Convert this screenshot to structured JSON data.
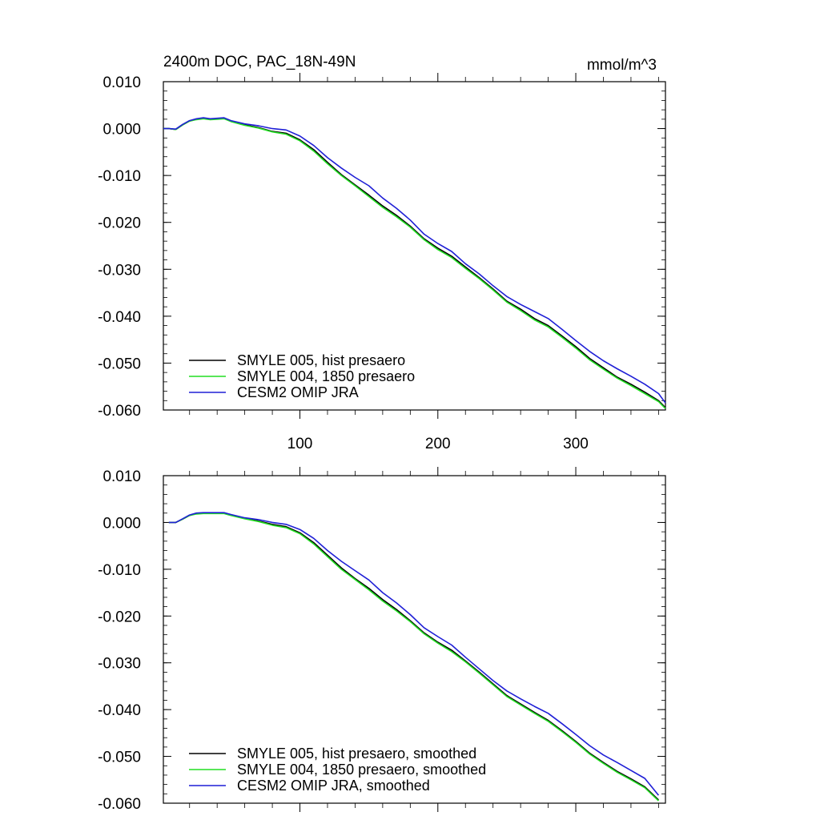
{
  "figure": {
    "title": "2400m DOC, PAC_18N-49N",
    "units": "mmol/m^3"
  },
  "colors": {
    "hist": "#000000",
    "y1850": "#22dd22",
    "omip": "#1f1fd6"
  },
  "chart_data": [
    {
      "type": "line",
      "title": "2400m DOC, PAC_18N-49N",
      "units_label": "mmol/m^3",
      "xlabel": "",
      "ylabel": "",
      "xlim": [
        1,
        365
      ],
      "ylim": [
        -0.06,
        0.01
      ],
      "x_ticks": [
        100,
        200,
        300
      ],
      "x_tick_labels": [
        "100",
        "200",
        "300"
      ],
      "y_ticks": [
        0.01,
        0.0,
        -0.01,
        -0.02,
        -0.03,
        -0.04,
        -0.05,
        -0.06
      ],
      "y_tick_labels": [
        "0.010",
        "0.000",
        "-0.010",
        "-0.020",
        "-0.030",
        "-0.040",
        "-0.050",
        "-0.060"
      ],
      "grid": false,
      "legend_position": "bottom-left",
      "x": [
        1,
        5,
        10,
        15,
        20,
        25,
        30,
        35,
        40,
        45,
        50,
        60,
        70,
        80,
        90,
        100,
        110,
        120,
        130,
        140,
        150,
        160,
        170,
        180,
        190,
        200,
        210,
        220,
        230,
        240,
        250,
        260,
        270,
        280,
        290,
        300,
        310,
        320,
        330,
        340,
        350,
        360,
        365
      ],
      "series": [
        {
          "name": "SMYLE 005, hist presaero",
          "color_key": "hist",
          "values": [
            0.0,
            0.0,
            -0.0002,
            0.0008,
            0.0016,
            0.002,
            0.0022,
            0.002,
            0.0021,
            0.0022,
            0.0016,
            0.0008,
            0.0002,
            -0.0006,
            -0.001,
            -0.0024,
            -0.0045,
            -0.0072,
            -0.0098,
            -0.012,
            -0.0142,
            -0.0165,
            -0.0185,
            -0.0208,
            -0.0235,
            -0.0255,
            -0.0272,
            -0.0295,
            -0.0318,
            -0.0342,
            -0.0368,
            -0.0385,
            -0.0405,
            -0.042,
            -0.0442,
            -0.0465,
            -0.049,
            -0.051,
            -0.053,
            -0.0545,
            -0.0562,
            -0.058,
            -0.0595
          ]
        },
        {
          "name": "SMYLE 004, 1850 presaero",
          "color_key": "y1850",
          "values": [
            0.0,
            0.0,
            -0.0002,
            0.0008,
            0.0016,
            0.0019,
            0.0021,
            0.0019,
            0.002,
            0.0021,
            0.0015,
            0.0007,
            0.0001,
            -0.0007,
            -0.0012,
            -0.0026,
            -0.0048,
            -0.0075,
            -0.01,
            -0.0122,
            -0.0145,
            -0.0168,
            -0.0188,
            -0.021,
            -0.0237,
            -0.0258,
            -0.0275,
            -0.0298,
            -0.032,
            -0.0344,
            -0.037,
            -0.0388,
            -0.0408,
            -0.0423,
            -0.0445,
            -0.0468,
            -0.0493,
            -0.0513,
            -0.0532,
            -0.0548,
            -0.0565,
            -0.0582,
            -0.0597
          ]
        },
        {
          "name": "CESM2 OMIP JRA",
          "color_key": "omip",
          "values": [
            0.0,
            0.0,
            -0.0001,
            0.0009,
            0.0017,
            0.0021,
            0.0023,
            0.0021,
            0.0022,
            0.0023,
            0.0017,
            0.001,
            0.0006,
            0.0,
            -0.0003,
            -0.0016,
            -0.0036,
            -0.0062,
            -0.0084,
            -0.0104,
            -0.0122,
            -0.0148,
            -0.017,
            -0.0195,
            -0.0225,
            -0.0245,
            -0.0262,
            -0.0288,
            -0.031,
            -0.0335,
            -0.0358,
            -0.0375,
            -0.039,
            -0.0405,
            -0.0428,
            -0.0452,
            -0.0475,
            -0.0495,
            -0.0512,
            -0.0528,
            -0.0545,
            -0.0565,
            -0.0585
          ]
        }
      ]
    },
    {
      "type": "line",
      "title": "",
      "xlabel": "",
      "ylabel": "",
      "xlim": [
        1,
        365
      ],
      "ylim": [
        -0.06,
        0.01
      ],
      "x_ticks": [
        100,
        200,
        300
      ],
      "x_tick_labels": [],
      "y_ticks": [
        0.01,
        0.0,
        -0.01,
        -0.02,
        -0.03,
        -0.04,
        -0.05,
        -0.06
      ],
      "y_tick_labels": [
        "0.010",
        "0.000",
        "-0.010",
        "-0.020",
        "-0.030",
        "-0.040",
        "-0.050",
        "-0.060"
      ],
      "grid": false,
      "legend_position": "bottom-left",
      "x": [
        5,
        10,
        15,
        20,
        25,
        30,
        35,
        40,
        45,
        50,
        60,
        70,
        80,
        90,
        100,
        110,
        120,
        130,
        140,
        150,
        160,
        170,
        180,
        190,
        200,
        210,
        220,
        230,
        240,
        250,
        260,
        270,
        280,
        290,
        300,
        310,
        320,
        330,
        340,
        350,
        360
      ],
      "series": [
        {
          "name": "SMYLE 005, hist presaero, smoothed",
          "color_key": "hist",
          "values": [
            0.0,
            0.0,
            0.0007,
            0.0015,
            0.0019,
            0.002,
            0.002,
            0.002,
            0.002,
            0.0016,
            0.0009,
            0.0003,
            -0.0004,
            -0.0009,
            -0.0022,
            -0.0043,
            -0.007,
            -0.0097,
            -0.012,
            -0.0141,
            -0.0165,
            -0.0186,
            -0.021,
            -0.0236,
            -0.0256,
            -0.0273,
            -0.0296,
            -0.032,
            -0.0345,
            -0.037,
            -0.0388,
            -0.0406,
            -0.0423,
            -0.0445,
            -0.0468,
            -0.0493,
            -0.0513,
            -0.0532,
            -0.0548,
            -0.0565,
            -0.0593
          ]
        },
        {
          "name": "SMYLE 004, 1850 presaero, smoothed",
          "color_key": "y1850",
          "values": [
            0.0,
            0.0,
            0.0007,
            0.0015,
            0.0018,
            0.0019,
            0.0019,
            0.0019,
            0.0019,
            0.0015,
            0.0008,
            0.0002,
            -0.0006,
            -0.0011,
            -0.0024,
            -0.0046,
            -0.0073,
            -0.01,
            -0.0122,
            -0.0144,
            -0.0168,
            -0.0189,
            -0.0212,
            -0.0238,
            -0.0258,
            -0.0276,
            -0.0298,
            -0.0322,
            -0.0347,
            -0.0372,
            -0.039,
            -0.0408,
            -0.0425,
            -0.0447,
            -0.047,
            -0.0495,
            -0.0515,
            -0.0534,
            -0.055,
            -0.0567,
            -0.0595
          ]
        },
        {
          "name": "CESM2 OMIP JRA, smoothed",
          "color_key": "omip",
          "values": [
            0.0,
            0.0,
            0.0008,
            0.0016,
            0.002,
            0.0021,
            0.0021,
            0.0021,
            0.0021,
            0.0017,
            0.001,
            0.0006,
            0.0,
            -0.0004,
            -0.0015,
            -0.0034,
            -0.006,
            -0.0083,
            -0.0103,
            -0.0123,
            -0.015,
            -0.0172,
            -0.0197,
            -0.0225,
            -0.0244,
            -0.0262,
            -0.0288,
            -0.0313,
            -0.0338,
            -0.036,
            -0.0377,
            -0.0393,
            -0.0408,
            -0.043,
            -0.0453,
            -0.0477,
            -0.0497,
            -0.0513,
            -0.053,
            -0.0547,
            -0.0583
          ]
        }
      ]
    }
  ]
}
